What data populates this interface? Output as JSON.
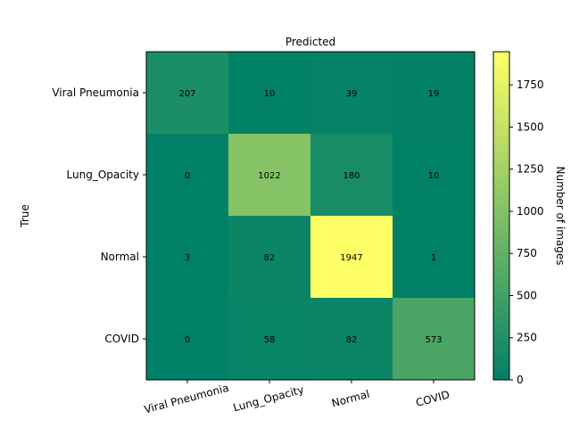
{
  "chart_data": {
    "type": "heatmap",
    "title": "Predicted",
    "xlabel": "",
    "ylabel": "True",
    "x_categories": [
      "Viral Pneumonia",
      "Lung_Opacity",
      "Normal",
      "COVID"
    ],
    "y_categories": [
      "Viral Pneumonia",
      "Lung_Opacity",
      "Normal",
      "COVID"
    ],
    "values": [
      [
        207,
        10,
        39,
        19
      ],
      [
        0,
        1022,
        180,
        10
      ],
      [
        3,
        82,
        1947,
        1
      ],
      [
        0,
        58,
        82,
        573
      ]
    ],
    "colorbar": {
      "label": "Number of images",
      "range": [
        0,
        1947
      ],
      "ticks": [
        0,
        250,
        500,
        750,
        1000,
        1250,
        1500,
        1750
      ]
    },
    "colormap": "summer",
    "colors": {
      "low": "#008066",
      "high": "#ffff66"
    },
    "x_tick_rotation": "15deg"
  }
}
